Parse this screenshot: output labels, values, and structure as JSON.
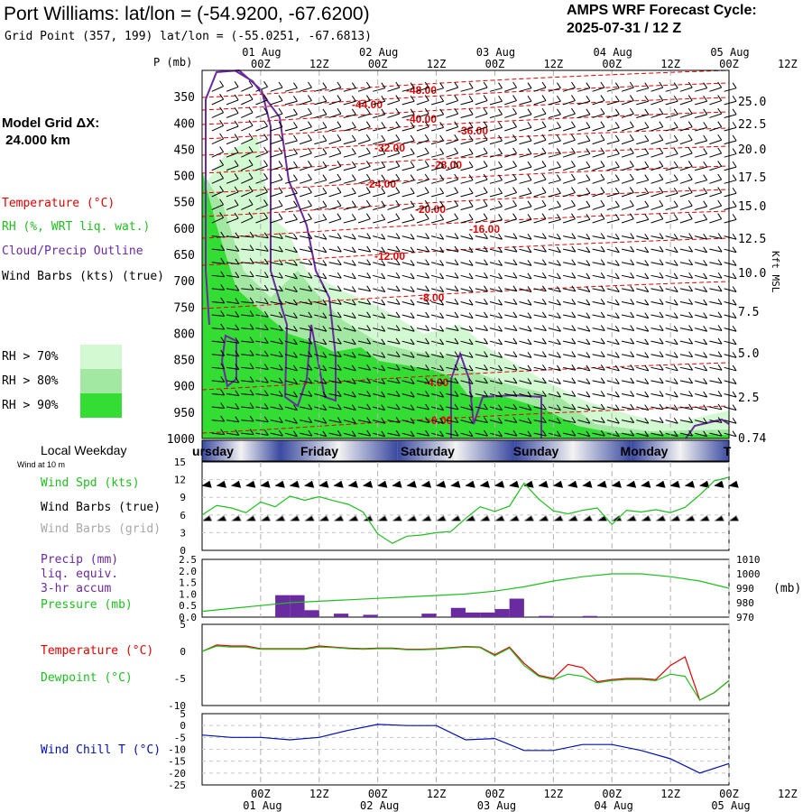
{
  "header": {
    "station_title": "Port Williams:  lat/lon = (-54.9200, -67.6200)",
    "grid_point": "Grid Point (357, 199) lat/lon = (-55.0251, -67.6813)",
    "cycle_title": "AMPS WRF Forecast Cycle:",
    "cycle_value": "2025-07-31 / 12  Z",
    "model_grid_label": "Model Grid ΔX:",
    "model_grid_value": " 24.000 km"
  },
  "time_axis": {
    "top_dates": [
      "01 Aug",
      "02 Aug",
      "03 Aug",
      "04 Aug",
      "05 Aug"
    ],
    "hour_labels": [
      "00Z",
      "12Z",
      "00Z",
      "12Z",
      "00Z",
      "12Z",
      "00Z",
      "12Z",
      "00Z",
      "12Z"
    ],
    "bottom_dates": [
      "01 Aug",
      "02 Aug",
      "03 Aug",
      "04 Aug",
      "05 Aug"
    ]
  },
  "cross_section": {
    "pressure_axis_title": "P (mb)",
    "pressure_levels": [
      "350",
      "400",
      "450",
      "500",
      "550",
      "600",
      "650",
      "700",
      "750",
      "800",
      "850",
      "900",
      "950",
      "1000"
    ],
    "height_axis_title": "Kft MSL",
    "height_labels": [
      "25.0",
      "22.5",
      "20.0",
      "17.5",
      "15.0",
      "12.5",
      "10.0",
      "7.5",
      "5.0",
      "2.5",
      "0.74"
    ],
    "isotherm_labels": [
      "-48.00",
      "-44.00",
      "-40.00",
      "-36.00",
      "-32.00",
      "-28.00",
      "-24.00",
      "-20.00",
      "-16.00",
      "-12.00",
      "-8.00",
      "-4.00",
      "-0.00"
    ],
    "legend": {
      "temperature": "Temperature (°C)",
      "rh": "RH (%, WRT liq. wat.)",
      "cloud": "Cloud/Precip Outline",
      "wind": "Wind Barbs (kts) (true)"
    },
    "rh_legend": [
      {
        "label": "RH > 70%",
        "color": "#d2f9d2"
      },
      {
        "label": "RH > 80%",
        "color": "#a2e8a2"
      },
      {
        "label": "RH > 90%",
        "color": "#33dd33"
      }
    ]
  },
  "weekday_strip": {
    "title": "Local Weekday",
    "days": [
      "ursday",
      "Friday",
      "Saturday",
      "Sunday",
      "Monday",
      "T"
    ]
  },
  "colors": {
    "temperature": "#e00000",
    "rh_green": "#1fbf1f",
    "cloud_outline": "#6a2aa0",
    "wind_chill": "#0010b0",
    "grid_gray": "#a8a8a8",
    "day_strip_dark": "#3a4aa0"
  },
  "chart_data": [
    {
      "type": "line",
      "panel": "surface_wind",
      "title": "Wind at 10 m",
      "series_labels": [
        "Wind Spd (kts)",
        "Wind Barbs (true)",
        "Wind Barbs (grid)"
      ],
      "y_ticks": [
        "15",
        "12",
        "9",
        "6",
        "3",
        "0"
      ],
      "ylim": [
        0,
        15
      ],
      "x_hours": [
        -12,
        -9,
        -6,
        -3,
        0,
        3,
        6,
        9,
        12,
        15,
        18,
        21,
        24,
        27,
        30,
        33,
        36,
        39,
        42,
        45,
        48,
        51,
        54,
        57,
        60,
        63,
        66,
        69,
        72,
        75,
        78,
        81,
        84,
        87,
        90,
        93,
        96
      ],
      "series": [
        {
          "name": "Wind Spd (kts)",
          "values": [
            6,
            7.6,
            7.2,
            6.4,
            8.2,
            7.4,
            9.2,
            8.5,
            9.1,
            8.4,
            7.8,
            6.5,
            2.8,
            1.2,
            2.4,
            2.6,
            3.0,
            3.2,
            5.4,
            7.4,
            6.6,
            7.5,
            11.4,
            8.7,
            6.7,
            6.2,
            6.8,
            7.2,
            4.4,
            6.8,
            6.5,
            6.9,
            6.4,
            7.3,
            9.4,
            11.8,
            12.4
          ]
        }
      ]
    },
    {
      "type": "bar",
      "panel": "precip_pressure",
      "series_labels": [
        "Precip (mm)",
        "liq. equiv.",
        "3-hr accum",
        "Pressure (mb)"
      ],
      "y_ticks_left": [
        "2.5",
        "2.0",
        "1.5",
        "1.0",
        "0.5",
        "0.0"
      ],
      "y_ticks_right": [
        "1010",
        "1000",
        "990",
        "980",
        "970"
      ],
      "right_unit": "(mb)",
      "ylim": [
        0,
        2.5
      ],
      "ylim_right": [
        970,
        1010
      ],
      "precip_bars": [
        {
          "start_hour": 3,
          "end_hour": 6,
          "value": 0.95
        },
        {
          "start_hour": 6,
          "end_hour": 9,
          "value": 0.95
        },
        {
          "start_hour": 9,
          "end_hour": 12,
          "value": 0.3
        },
        {
          "start_hour": 15,
          "end_hour": 18,
          "value": 0.15
        },
        {
          "start_hour": 21,
          "end_hour": 24,
          "value": 0.1
        },
        {
          "start_hour": 33,
          "end_hour": 36,
          "value": 0.15
        },
        {
          "start_hour": 39,
          "end_hour": 42,
          "value": 0.4
        },
        {
          "start_hour": 42,
          "end_hour": 45,
          "value": 0.2
        },
        {
          "start_hour": 45,
          "end_hour": 48,
          "value": 0.2
        },
        {
          "start_hour": 48,
          "end_hour": 51,
          "value": 0.35
        },
        {
          "start_hour": 51,
          "end_hour": 54,
          "value": 0.8
        },
        {
          "start_hour": 57,
          "end_hour": 60,
          "value": 0.05
        },
        {
          "start_hour": 66,
          "end_hour": 69,
          "value": 0.05
        }
      ],
      "pressure": {
        "x_hours": [
          -12,
          -6,
          0,
          6,
          12,
          18,
          24,
          30,
          36,
          42,
          48,
          54,
          60,
          66,
          72,
          78,
          84,
          90,
          96
        ],
        "values": [
          974,
          976,
          978,
          980,
          981,
          982,
          983,
          984,
          985,
          986,
          988,
          991,
          995,
          998,
          1000,
          1000,
          998,
          995,
          990
        ]
      }
    },
    {
      "type": "line",
      "panel": "temperature_dewpoint",
      "series_labels": [
        "Temperature (°C)",
        "Dewpoint (°C)"
      ],
      "y_ticks": [
        "5",
        "0",
        "-5",
        "-10"
      ],
      "ylim": [
        -10,
        5
      ],
      "x_hours": [
        -12,
        -9,
        -6,
        -3,
        0,
        3,
        6,
        9,
        12,
        15,
        18,
        21,
        24,
        27,
        30,
        33,
        36,
        39,
        42,
        45,
        48,
        51,
        54,
        57,
        60,
        63,
        66,
        69,
        72,
        75,
        78,
        81,
        84,
        87,
        90,
        93,
        96
      ],
      "series": [
        {
          "name": "Temperature (°C)",
          "values": [
            0,
            1.2,
            1.0,
            1.0,
            0.5,
            0.5,
            0.5,
            0.5,
            1.0,
            0.8,
            0.6,
            0.5,
            0.6,
            0.6,
            0.4,
            0.4,
            0.5,
            0.7,
            0.9,
            0.8,
            -0.6,
            0.8,
            -2.2,
            -4.4,
            -5.0,
            -2.4,
            -3.0,
            -5.6,
            -5.2,
            -5.0,
            -5.0,
            -5.2,
            -2.6,
            -1.0,
            -9.0,
            -7.6,
            -5.4
          ]
        },
        {
          "name": "Dewpoint (°C)",
          "values": [
            0,
            1.0,
            0.8,
            0.8,
            0.4,
            0.4,
            0.4,
            0.4,
            0.8,
            0.7,
            0.5,
            0.4,
            0.5,
            0.5,
            0.3,
            0.3,
            0.4,
            0.6,
            0.8,
            0.7,
            -0.8,
            0.6,
            -2.6,
            -4.6,
            -5.2,
            -4.2,
            -4.6,
            -5.8,
            -5.4,
            -5.2,
            -5.2,
            -5.4,
            -4.2,
            -4.6,
            -9.0,
            -7.6,
            -5.4
          ]
        }
      ]
    },
    {
      "type": "line",
      "panel": "wind_chill",
      "series_labels": [
        "Wind Chill T (°C)"
      ],
      "y_ticks": [
        "5",
        "0",
        "-5",
        "-10",
        "-15",
        "-20",
        "-25"
      ],
      "ylim": [
        -25,
        5
      ],
      "x_hours": [
        -12,
        -6,
        0,
        6,
        12,
        18,
        24,
        30,
        36,
        42,
        48,
        54,
        60,
        66,
        72,
        78,
        84,
        90,
        96
      ],
      "series": [
        {
          "name": "Wind Chill T (°C)",
          "values": [
            -4,
            -5,
            -5,
            -6,
            -5,
            -2,
            0.5,
            0,
            0,
            -6,
            -5.5,
            -10.5,
            -10.5,
            -8,
            -8,
            -10.5,
            -14,
            -20,
            -16
          ]
        }
      ]
    }
  ]
}
